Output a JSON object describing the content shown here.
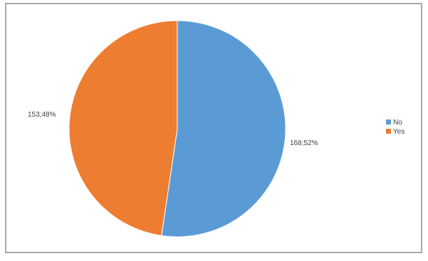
{
  "chart_data": {
    "type": "pie",
    "categories": [
      "No",
      "Yes"
    ],
    "values": [
      168,
      153
    ],
    "data_labels": [
      "168;52%",
      "153;48%"
    ],
    "colors": [
      "#5b9bd5",
      "#ed7d31"
    ],
    "title": "",
    "legend_position": "right"
  }
}
